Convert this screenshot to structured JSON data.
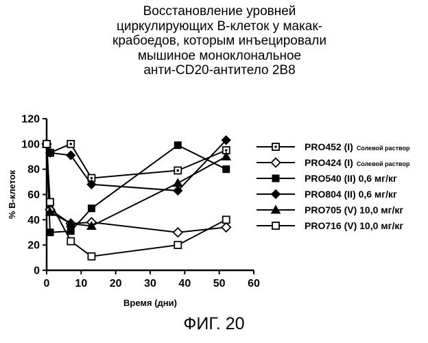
{
  "figure": {
    "title_lines": [
      "Восстановление уровней",
      "циркулирующих В-клеток у макак-",
      "крабоедов, которым инъецировали",
      "мышиное моноклональное",
      "анти-CD20-антитело 2В8"
    ],
    "caption": "ФИГ. 20"
  },
  "chart_data": {
    "type": "line",
    "xlabel": "Время (дни)",
    "ylabel": "% В-клеток",
    "xlim": [
      0,
      60
    ],
    "ylim": [
      0,
      120
    ],
    "xticks": [
      "0",
      "10",
      "20",
      "30",
      "40",
      "50",
      "60"
    ],
    "yticks": [
      "0",
      "20",
      "40",
      "60",
      "80",
      "100",
      "120"
    ],
    "legend_position": "right",
    "series": [
      {
        "name": "PRO452 (I)",
        "note": "Солевой раствор",
        "marker": "square-dot",
        "x": [
          0,
          1,
          7,
          13,
          38,
          52
        ],
        "y": [
          100,
          93,
          100,
          73,
          79,
          95
        ]
      },
      {
        "name": "PRO424 (I)",
        "note": "Солевой раствор",
        "marker": "diamond-open",
        "x": [
          0,
          1,
          7,
          13,
          38,
          52
        ],
        "y": [
          100,
          48,
          37,
          38,
          30,
          34
        ]
      },
      {
        "name": "PRO540 (II) 0,6 мг/кг",
        "note": "",
        "marker": "square-filled",
        "x": [
          0,
          1,
          7,
          13,
          38,
          52
        ],
        "y": [
          100,
          30,
          31,
          49,
          99,
          80
        ]
      },
      {
        "name": "PRO804 (II) 0,6 мг/кг",
        "note": "",
        "marker": "diamond-filled",
        "x": [
          0,
          1,
          7,
          13,
          38,
          52
        ],
        "y": [
          100,
          93,
          91,
          68,
          63,
          103
        ]
      },
      {
        "name": "PRO705 (V) 10,0 мг/кг",
        "note": "",
        "marker": "triangle-filled",
        "x": [
          0,
          1,
          7,
          13,
          38,
          52
        ],
        "y": [
          100,
          46,
          37,
          35,
          69,
          90
        ]
      },
      {
        "name": "PRO716 (V) 10,0 мг/кг",
        "note": "",
        "marker": "square-open",
        "x": [
          0,
          1,
          7,
          13,
          38,
          52
        ],
        "y": [
          100,
          54,
          23,
          11,
          20,
          40
        ]
      }
    ]
  }
}
